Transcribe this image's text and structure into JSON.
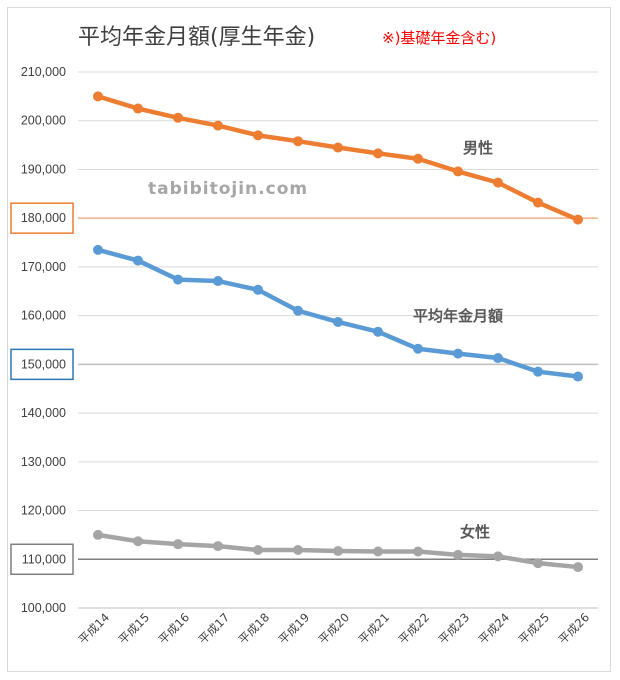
{
  "chart_data": {
    "type": "line",
    "title": "平均年金月額(厚生年金)",
    "title_note": "※)基礎年金含む)",
    "watermark": "tabibitojin.com",
    "categories": [
      "平成14",
      "平成15",
      "平成16",
      "平成17",
      "平成18",
      "平成19",
      "平成20",
      "平成21",
      "平成22",
      "平成23",
      "平成24",
      "平成25",
      "平成26"
    ],
    "ylim": [
      100000,
      210000
    ],
    "ytick_step": 10000,
    "yticks": [
      "100,000",
      "110,000",
      "120,000",
      "130,000",
      "140,000",
      "150,000",
      "160,000",
      "170,000",
      "180,000",
      "190,000",
      "200,000",
      "210,000"
    ],
    "grid": true,
    "series": [
      {
        "name": "男性",
        "color": "#ed7d31",
        "values": [
          205000,
          202500,
          200600,
          199000,
          197000,
          195800,
          194500,
          193300,
          192200,
          189600,
          187300,
          183200,
          179700
        ]
      },
      {
        "name": "平均年金月額",
        "color": "#5b9bd5",
        "values": [
          173500,
          171300,
          167400,
          167100,
          165300,
          161000,
          158700,
          156700,
          153200,
          152200,
          151300,
          148500,
          147500
        ]
      },
      {
        "name": "女性",
        "color": "#a5a5a5",
        "values": [
          115000,
          113700,
          113100,
          112700,
          111900,
          111900,
          111700,
          111600,
          111600,
          110900,
          110600,
          109200,
          108400
        ]
      }
    ],
    "reference_lines": [
      {
        "value": 180000,
        "color": "#f4b183",
        "box_color": "#ed7d31"
      },
      {
        "value": 150000,
        "color": "#bfbfbf",
        "box_color": "#2e75b6"
      },
      {
        "value": 110000,
        "color": "#7f7f7f",
        "box_color": "#7f7f7f"
      }
    ]
  }
}
